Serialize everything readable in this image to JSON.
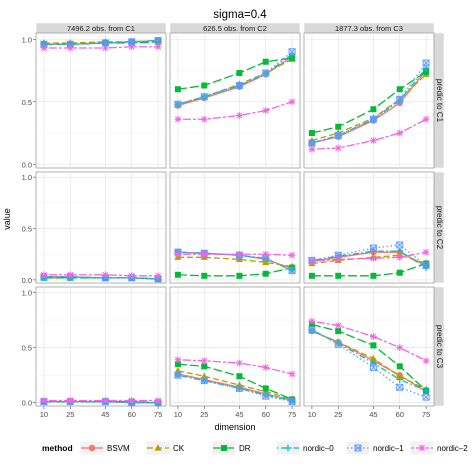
{
  "chart_data": {
    "type": "line",
    "title": "sigma=0.4",
    "xlabel": "dimension",
    "ylabel": "value",
    "x": [
      10,
      25,
      45,
      60,
      75
    ],
    "ylim": [
      -0.03,
      1.05
    ],
    "yticks": [
      0.0,
      0.5,
      1.0
    ],
    "ytick_labels": [
      "0.0",
      "0.5",
      "1.0"
    ],
    "grid": true,
    "legend_title": "method",
    "legend_position": "bottom",
    "col_labels": [
      "7496.2 obs. from C1",
      "626.5 obs. from C2",
      "1877.3 obs. from C3"
    ],
    "row_labels": [
      "predic to C1",
      "predic to C2",
      "predic to C3"
    ],
    "methods": [
      {
        "name": "BSVM",
        "color": "#F8766D",
        "dash": "solid",
        "marker": "circle"
      },
      {
        "name": "CK",
        "color": "#B79F00",
        "dash": "dash",
        "marker": "triangle"
      },
      {
        "name": "DR",
        "color": "#00BA38",
        "dash": "longdash",
        "marker": "square"
      },
      {
        "name": "nordic–0",
        "color": "#00BFC4",
        "dash": "dotdash",
        "marker": "plus"
      },
      {
        "name": "nordic–1",
        "color": "#619CFF",
        "dash": "dot",
        "marker": "boxx"
      },
      {
        "name": "nordic–2",
        "color": "#F564E3",
        "dash": "twodash",
        "marker": "asterisk"
      }
    ],
    "panels": [
      [
        {
          "BSVM": [
            0.96,
            0.96,
            0.97,
            0.98,
            0.99
          ],
          "CK": [
            0.97,
            0.97,
            0.98,
            0.98,
            0.98
          ],
          "DR": [
            0.96,
            0.96,
            0.97,
            0.97,
            0.98
          ],
          "nordic–0": [
            0.96,
            0.96,
            0.97,
            0.98,
            0.99
          ],
          "nordic–1": [
            0.96,
            0.96,
            0.97,
            0.98,
            0.99
          ],
          "nordic–2": [
            0.93,
            0.93,
            0.93,
            0.94,
            0.94
          ]
        },
        {
          "BSVM": [
            0.47,
            0.53,
            0.62,
            0.72,
            0.86
          ],
          "CK": [
            0.48,
            0.54,
            0.64,
            0.73,
            0.84
          ],
          "DR": [
            0.6,
            0.63,
            0.73,
            0.82,
            0.85
          ],
          "nordic–0": [
            0.48,
            0.54,
            0.63,
            0.72,
            0.88
          ],
          "nordic–1": [
            0.48,
            0.54,
            0.63,
            0.73,
            0.9
          ],
          "nordic–2": [
            0.36,
            0.36,
            0.39,
            0.43,
            0.5
          ]
        },
        {
          "BSVM": [
            0.17,
            0.22,
            0.35,
            0.49,
            0.75
          ],
          "CK": [
            0.19,
            0.25,
            0.37,
            0.52,
            0.72
          ],
          "DR": [
            0.25,
            0.3,
            0.44,
            0.6,
            0.74
          ],
          "nordic–0": [
            0.17,
            0.23,
            0.36,
            0.51,
            0.77
          ],
          "nordic–1": [
            0.17,
            0.23,
            0.36,
            0.52,
            0.81
          ],
          "nordic–2": [
            0.12,
            0.13,
            0.19,
            0.25,
            0.36
          ]
        }
      ],
      [
        {
          "BSVM": [
            0.03,
            0.03,
            0.02,
            0.02,
            0.01
          ],
          "CK": [
            0.02,
            0.02,
            0.02,
            0.02,
            0.01
          ],
          "DR": [
            0.02,
            0.02,
            0.02,
            0.02,
            0.01
          ],
          "nordic–0": [
            0.03,
            0.03,
            0.02,
            0.02,
            0.01
          ],
          "nordic–1": [
            0.03,
            0.03,
            0.02,
            0.02,
            0.01
          ],
          "nordic–2": [
            0.05,
            0.05,
            0.05,
            0.04,
            0.04
          ]
        },
        {
          "BSVM": [
            0.27,
            0.26,
            0.24,
            0.2,
            0.11
          ],
          "CK": [
            0.22,
            0.22,
            0.2,
            0.17,
            0.13
          ],
          "DR": [
            0.05,
            0.04,
            0.04,
            0.06,
            0.12
          ],
          "nordic–0": [
            0.27,
            0.26,
            0.24,
            0.21,
            0.09
          ],
          "nordic–1": [
            0.27,
            0.26,
            0.24,
            0.21,
            0.09
          ],
          "nordic–2": [
            0.25,
            0.25,
            0.25,
            0.25,
            0.24
          ]
        },
        {
          "BSVM": [
            0.18,
            0.22,
            0.27,
            0.27,
            0.14
          ],
          "CK": [
            0.16,
            0.19,
            0.22,
            0.24,
            0.16
          ],
          "DR": [
            0.04,
            0.04,
            0.04,
            0.07,
            0.16
          ],
          "nordic–0": [
            0.19,
            0.23,
            0.28,
            0.28,
            0.12
          ],
          "nordic–1": [
            0.19,
            0.24,
            0.31,
            0.34,
            0.14
          ],
          "nordic–2": [
            0.18,
            0.2,
            0.21,
            0.22,
            0.27
          ]
        }
      ],
      [
        {
          "BSVM": [
            0.01,
            0.01,
            0.01,
            0.0,
            0.0
          ],
          "CK": [
            0.01,
            0.01,
            0.01,
            0.01,
            0.0
          ],
          "DR": [
            0.01,
            0.01,
            0.01,
            0.01,
            0.0
          ],
          "nordic–0": [
            0.01,
            0.01,
            0.01,
            0.0,
            0.0
          ],
          "nordic–1": [
            0.01,
            0.01,
            0.01,
            0.0,
            0.0
          ],
          "nordic–2": [
            0.02,
            0.02,
            0.02,
            0.02,
            0.02
          ]
        },
        {
          "BSVM": [
            0.26,
            0.21,
            0.14,
            0.08,
            0.02
          ],
          "CK": [
            0.29,
            0.24,
            0.16,
            0.1,
            0.03
          ],
          "DR": [
            0.35,
            0.33,
            0.24,
            0.13,
            0.03
          ],
          "nordic–0": [
            0.25,
            0.2,
            0.13,
            0.07,
            0.02
          ],
          "nordic–1": [
            0.25,
            0.2,
            0.13,
            0.06,
            0.01
          ],
          "nordic–2": [
            0.39,
            0.38,
            0.36,
            0.32,
            0.26
          ]
        },
        {
          "BSVM": [
            0.65,
            0.55,
            0.38,
            0.25,
            0.1
          ],
          "CK": [
            0.65,
            0.55,
            0.4,
            0.24,
            0.12
          ],
          "DR": [
            0.71,
            0.65,
            0.52,
            0.33,
            0.11
          ],
          "nordic–0": [
            0.66,
            0.54,
            0.36,
            0.21,
            0.11
          ],
          "nordic–1": [
            0.66,
            0.53,
            0.32,
            0.14,
            0.05
          ],
          "nordic–2": [
            0.74,
            0.7,
            0.6,
            0.5,
            0.38
          ]
        }
      ]
    ]
  }
}
